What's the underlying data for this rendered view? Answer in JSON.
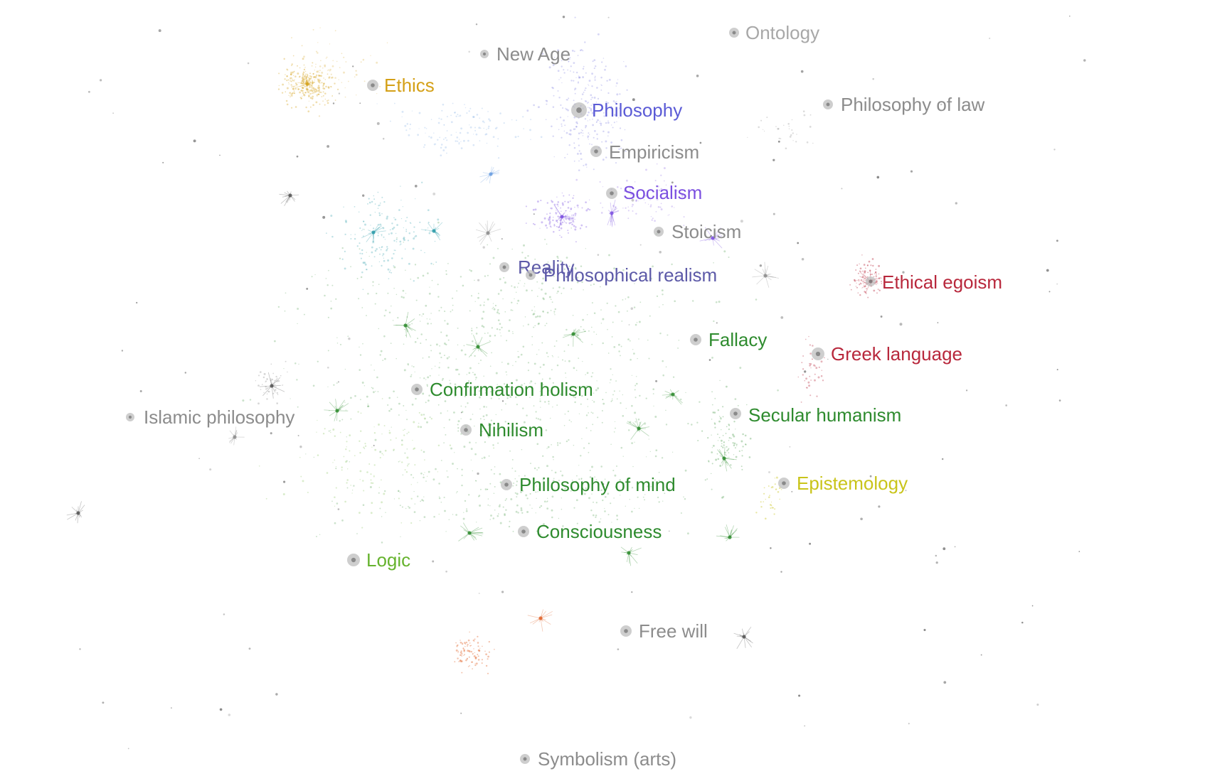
{
  "colors": {
    "background": "#ffffff",
    "gray": "#8c8c8c",
    "light_gray": "#b0b0b0",
    "dark_gray": "#555555",
    "ethics_gold": "#d4a017",
    "philosophy_blue": "#5b5bd6",
    "socialism_purple": "#7b4fe0",
    "realism_slate": "#5d5aa8",
    "green": "#2e8b2e",
    "light_green": "#66b32e",
    "red": "#b8283c",
    "yellow": "#c9c41a",
    "orange": "#e0642a",
    "teal": "#2a9aa8",
    "sky": "#6a9ee0"
  },
  "nodes": [
    {
      "id": "ontology",
      "label": "Ontology",
      "color": "#a8a8a8"
    },
    {
      "id": "new-age",
      "label": "New Age",
      "color": "#8c8c8c"
    },
    {
      "id": "ethics",
      "label": "Ethics",
      "color": "#d4a017"
    },
    {
      "id": "philosophy",
      "label": "Philosophy",
      "color": "#5b5bd6"
    },
    {
      "id": "philosophy-of-law",
      "label": "Philosophy of law",
      "color": "#8c8c8c"
    },
    {
      "id": "empiricism",
      "label": "Empiricism",
      "color": "#8c8c8c"
    },
    {
      "id": "socialism",
      "label": "Socialism",
      "color": "#7b4fe0"
    },
    {
      "id": "stoicism",
      "label": "Stoicism",
      "color": "#8c8c8c"
    },
    {
      "id": "reality",
      "label": "Reality",
      "color": "#5d5aa8"
    },
    {
      "id": "philosophical-realism",
      "label": "Philosophical realism",
      "color": "#5d5aa8"
    },
    {
      "id": "ethical-egoism",
      "label": "Ethical egoism",
      "color": "#b8283c"
    },
    {
      "id": "fallacy",
      "label": "Fallacy",
      "color": "#2e8b2e"
    },
    {
      "id": "greek-language",
      "label": "Greek language",
      "color": "#b8283c"
    },
    {
      "id": "confirmation-holism",
      "label": "Confirmation holism",
      "color": "#2e8b2e"
    },
    {
      "id": "islamic-philosophy",
      "label": "Islamic philosophy",
      "color": "#8c8c8c"
    },
    {
      "id": "secular-humanism",
      "label": "Secular humanism",
      "color": "#2e8b2e"
    },
    {
      "id": "nihilism",
      "label": "Nihilism",
      "color": "#2e8b2e"
    },
    {
      "id": "epistemology",
      "label": "Epistemology",
      "color": "#c9c41a"
    },
    {
      "id": "philosophy-of-mind",
      "label": "Philosophy of mind",
      "color": "#2e8b2e"
    },
    {
      "id": "consciousness",
      "label": "Consciousness",
      "color": "#2e8b2e"
    },
    {
      "id": "logic",
      "label": "Logic",
      "color": "#66b32e"
    },
    {
      "id": "free-will",
      "label": "Free will",
      "color": "#8c8c8c"
    },
    {
      "id": "symbolism-arts",
      "label": "Symbolism (arts)",
      "color": "#8c8c8c"
    }
  ]
}
